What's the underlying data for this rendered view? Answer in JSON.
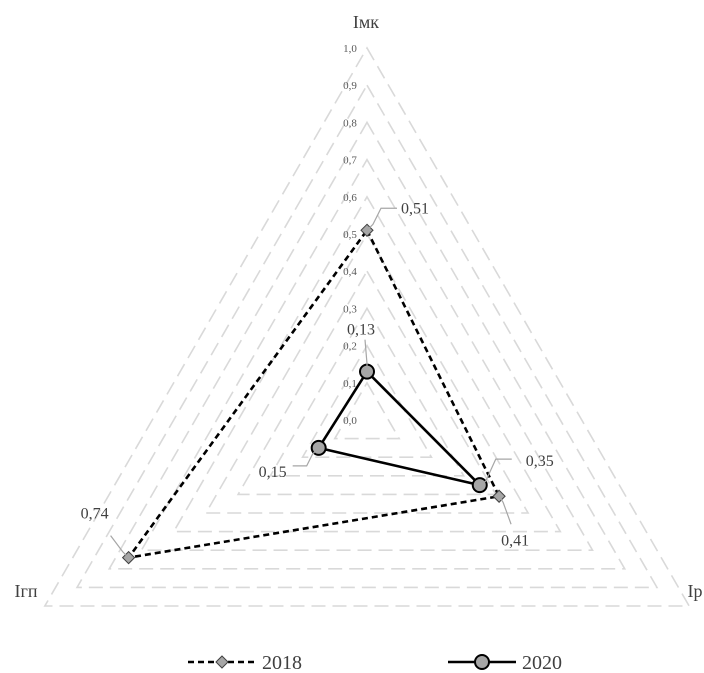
{
  "chart_data": {
    "type": "radar",
    "axes": [
      "Iмк",
      "Iр",
      "Iгп"
    ],
    "ticks": [
      "0,0",
      "0,1",
      "0,2",
      "0,3",
      "0,4",
      "0,5",
      "0,6",
      "0,7",
      "0,8",
      "0,9",
      "1,0"
    ],
    "rlim": [
      0,
      1.0
    ],
    "grid": true,
    "legend": "bottom",
    "series": [
      {
        "name": "2018",
        "values": [
          0.51,
          0.41,
          0.74
        ],
        "labels": [
          "0,51",
          "0,41",
          "0,74"
        ],
        "color": "#000000",
        "marker_fill": "#a6a6a6",
        "line_style": "dashed",
        "marker": "diamond"
      },
      {
        "name": "2020",
        "values": [
          0.13,
          0.35,
          0.15
        ],
        "labels": [
          "0,13",
          "0,35",
          "0,15"
        ],
        "color": "#000000",
        "marker_fill": "#a6a6a6",
        "line_style": "solid",
        "marker": "circle"
      }
    ],
    "colors": {
      "grid": "#d9d9d9",
      "tick_text": "#595959",
      "leader_line": "#a6a6a6"
    }
  }
}
